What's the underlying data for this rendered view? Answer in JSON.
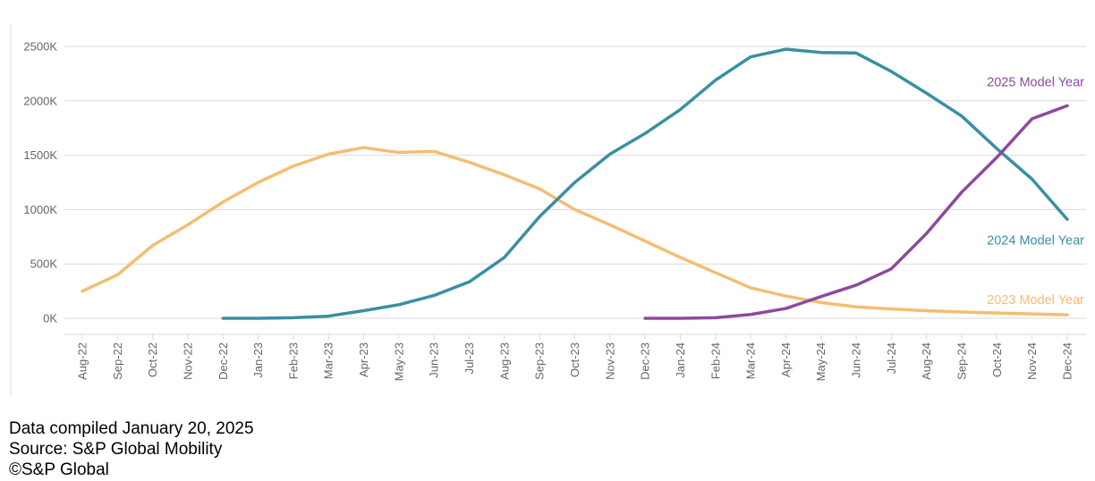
{
  "chart_data": {
    "type": "line",
    "title": "",
    "xlabel": "",
    "ylabel": "",
    "categories": [
      "Aug-22",
      "Sep-22",
      "Oct-22",
      "Nov-22",
      "Dec-22",
      "Jan-23",
      "Feb-23",
      "Mar-23",
      "Apr-23",
      "May-23",
      "Jun-23",
      "Jul-23",
      "Aug-23",
      "Sep-23",
      "Oct-23",
      "Nov-23",
      "Dec-23",
      "Jan-24",
      "Feb-24",
      "Mar-24",
      "Apr-24",
      "May-24",
      "Jun-24",
      "Jul-24",
      "Aug-24",
      "Sep-24",
      "Oct-24",
      "Nov-24",
      "Dec-24"
    ],
    "ylim": [
      0,
      2500
    ],
    "y_ticks": [
      0,
      500,
      1000,
      1500,
      2000,
      2500
    ],
    "y_tick_labels": [
      "0K",
      "500K",
      "1000K",
      "1500K",
      "2000K",
      "2500K"
    ],
    "grid": true,
    "legend": "inline-right",
    "series": [
      {
        "name": "2023 Model Year",
        "color": "#f5bd72",
        "values": [
          250,
          400,
          670,
          860,
          1070,
          1250,
          1400,
          1510,
          1570,
          1525,
          1535,
          1435,
          1320,
          1190,
          1000,
          860,
          710,
          560,
          420,
          280,
          205,
          145,
          105,
          85,
          70,
          58,
          48,
          40,
          32
        ]
      },
      {
        "name": "2024 Model Year",
        "color": "#3a8fa3",
        "values": [
          null,
          null,
          null,
          null,
          0,
          0,
          5,
          20,
          70,
          125,
          210,
          335,
          560,
          935,
          1250,
          1510,
          1700,
          1920,
          2190,
          2405,
          2475,
          2445,
          2440,
          2270,
          2070,
          1860,
          1560,
          1280,
          910
        ]
      },
      {
        "name": "2025 Model Year",
        "color": "#8e4a9e",
        "values": [
          null,
          null,
          null,
          null,
          null,
          null,
          null,
          null,
          null,
          null,
          null,
          null,
          null,
          null,
          null,
          null,
          0,
          0,
          5,
          35,
          90,
          200,
          305,
          455,
          780,
          1160,
          1480,
          1835,
          1955
        ]
      }
    ]
  },
  "footer": {
    "line1": "Data compiled January 20, 2025",
    "line2": "Source: S&P Global Mobility",
    "line3": "©S&P Global"
  }
}
